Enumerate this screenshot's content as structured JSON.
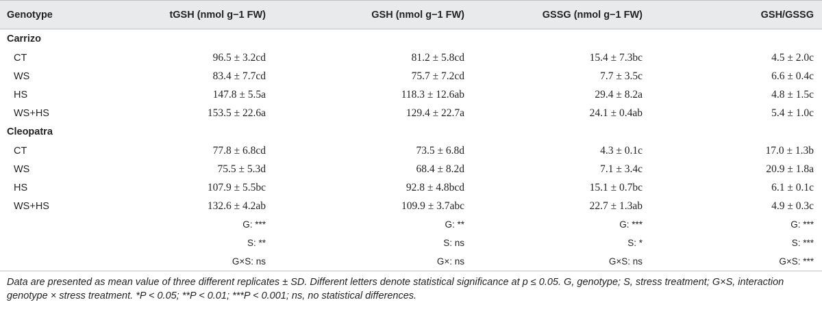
{
  "headers": [
    "Genotype",
    "tGSH (nmol g−1 FW)",
    "GSH (nmol g−1 FW)",
    "GSSG (nmol g−1 FW)",
    "GSH/GSSG"
  ],
  "groups": [
    {
      "name": "Carrizo",
      "rows": [
        {
          "treatment": "CT",
          "tgsh": "96.5 ± 3.2cd",
          "gsh": "81.2 ± 5.8cd",
          "gssg": "15.4 ± 7.3bc",
          "ratio": "4.5 ± 2.0c"
        },
        {
          "treatment": "WS",
          "tgsh": "83.4 ± 7.7cd",
          "gsh": "75.7 ± 7.2cd",
          "gssg": "7.7 ± 3.5c",
          "ratio": "6.6 ± 0.4c"
        },
        {
          "treatment": "HS",
          "tgsh": "147.8 ± 5.5a",
          "gsh": "118.3 ± 12.6ab",
          "gssg": "29.4 ± 8.2a",
          "ratio": "4.8 ± 1.5c"
        },
        {
          "treatment": "WS+HS",
          "tgsh": "153.5 ± 22.6a",
          "gsh": "129.4 ± 22.7a",
          "gssg": "24.1 ± 0.4ab",
          "ratio": "5.4 ± 1.0c"
        }
      ]
    },
    {
      "name": "Cleopatra",
      "rows": [
        {
          "treatment": "CT",
          "tgsh": "77.8 ± 6.8cd",
          "gsh": "73.5 ± 6.8d",
          "gssg": "4.3 ± 0.1c",
          "ratio": "17.0 ± 1.3b"
        },
        {
          "treatment": "WS",
          "tgsh": "75.5 ± 5.3d",
          "gsh": "68.4 ± 8.2d",
          "gssg": "7.1 ± 3.4c",
          "ratio": "20.9 ± 1.8a"
        },
        {
          "treatment": "HS",
          "tgsh": "107.9 ± 5.5bc",
          "gsh": "92.8 ± 4.8bcd",
          "gssg": "15.1 ± 0.7bc",
          "ratio": "6.1 ± 0.1c"
        },
        {
          "treatment": "WS+HS",
          "tgsh": "132.6 ± 4.2ab",
          "gsh": "109.9 ± 3.7abc",
          "gssg": "22.7 ± 1.3ab",
          "ratio": "4.9 ± 0.3c"
        }
      ]
    }
  ],
  "stats": [
    {
      "tgsh": "G: ***",
      "gsh": "G: **",
      "gssg": "G: ***",
      "ratio": "G: ***"
    },
    {
      "tgsh": "S: **",
      "gsh": "S: ns",
      "gssg": "S: *",
      "ratio": "S: ***"
    },
    {
      "tgsh": "G×S: ns",
      "gsh": "G×: ns",
      "gssg": "G×S: ns",
      "ratio": "G×S: ***"
    }
  ],
  "footnote": "Data are presented as mean value of three different replicates ± SD. Different letters denote statistical significance at p ≤ 0.05. G, genotype; S, stress treatment; G×S, interaction genotype × stress treatment. *P < 0.05; **P < 0.01; ***P < 0.001; ns, no statistical differences."
}
